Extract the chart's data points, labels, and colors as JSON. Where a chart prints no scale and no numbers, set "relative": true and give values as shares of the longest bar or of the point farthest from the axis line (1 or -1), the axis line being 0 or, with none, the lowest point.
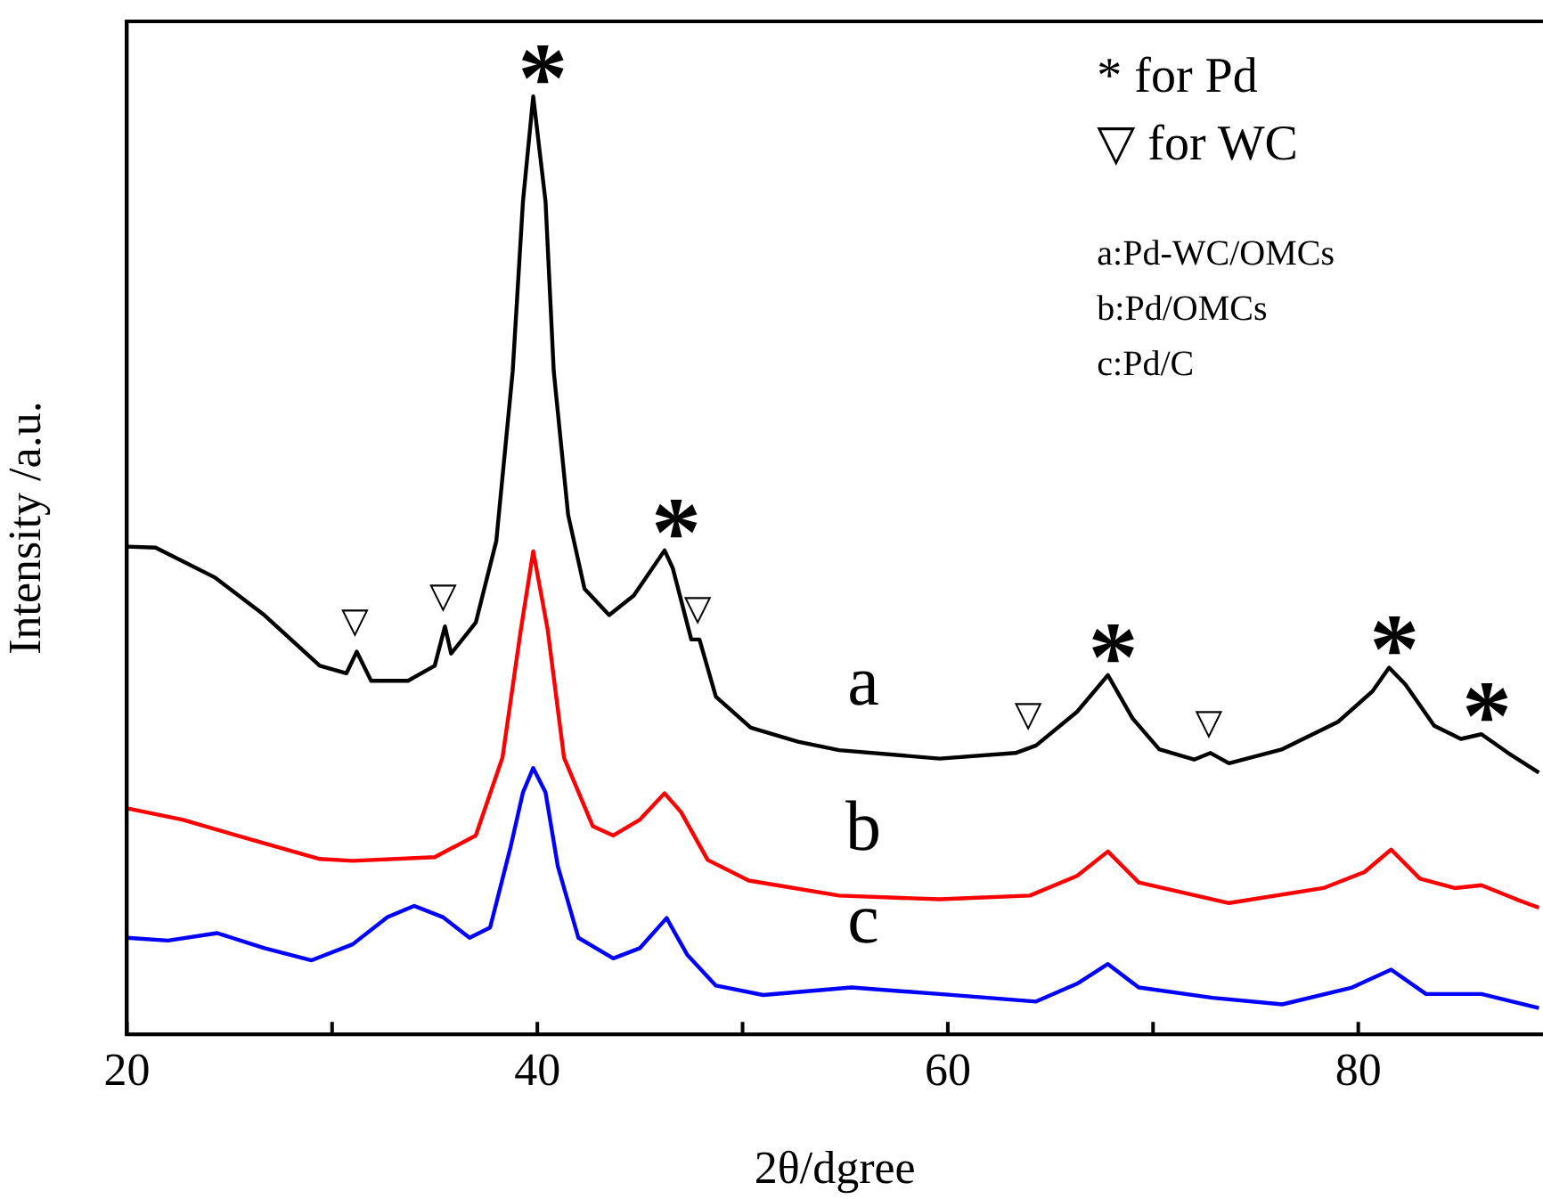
{
  "chart_data": {
    "type": "line",
    "relative": true,
    "xlabel": "2θ/dgree",
    "ylabel": "Intensity /a.u.",
    "xlim": [
      20,
      89
    ],
    "xticks": [
      20,
      {
        "value": 30,
        "label": null
      },
      40,
      {
        "value": 50,
        "label": null
      },
      60,
      {
        "value": 70,
        "label": null
      },
      80
    ],
    "grid": false,
    "legend": false,
    "marker": "none",
    "line_style": "solid",
    "series": [
      {
        "name": "a",
        "color": "#000000",
        "x": [
          20,
          21.4,
          24.3,
          26.7,
          29.4,
          30.7,
          31.2,
          31.9,
          33.7,
          35.0,
          35.5,
          35.8,
          37.0,
          38.0,
          38.8,
          39.3,
          39.8,
          40.4,
          40.8,
          41.5,
          42.3,
          43.5,
          44.7,
          46.2,
          46.6,
          47.5,
          47.9,
          48.7,
          50.4,
          52.7,
          54.7,
          59.6,
          63.3,
          64.3,
          66.3,
          67.8,
          69.0,
          70.3,
          72.0,
          72.8,
          73.7,
          76.3,
          79.0,
          80.7,
          81.5,
          82.3,
          83.7,
          85.0,
          86.0,
          87.3,
          88.8
        ],
        "values": [
          0.52,
          0.519,
          0.487,
          0.447,
          0.393,
          0.385,
          0.408,
          0.377,
          0.377,
          0.393,
          0.435,
          0.406,
          0.439,
          0.526,
          0.707,
          0.888,
          1.0,
          0.888,
          0.707,
          0.554,
          0.475,
          0.447,
          0.468,
          0.516,
          0.497,
          0.421,
          0.421,
          0.36,
          0.327,
          0.312,
          0.303,
          0.294,
          0.3,
          0.308,
          0.344,
          0.383,
          0.337,
          0.304,
          0.293,
          0.3,
          0.289,
          0.304,
          0.333,
          0.366,
          0.391,
          0.373,
          0.329,
          0.315,
          0.32,
          0.3,
          0.279
        ]
      },
      {
        "name": "b",
        "color": "#ff0000",
        "x": [
          20,
          22.7,
          26.0,
          29.4,
          31.0,
          35.0,
          37.0,
          38.3,
          39.2,
          39.8,
          40.5,
          41.3,
          42.7,
          43.7,
          45.0,
          46.2,
          47.0,
          48.3,
          50.3,
          54.7,
          59.6,
          64.0,
          66.3,
          67.8,
          69.3,
          73.7,
          78.3,
          80.3,
          81.6,
          83.0,
          84.7,
          86.0,
          87.7,
          88.8
        ],
        "values": [
          0.241,
          0.229,
          0.208,
          0.187,
          0.185,
          0.189,
          0.212,
          0.295,
          0.432,
          0.515,
          0.432,
          0.295,
          0.222,
          0.212,
          0.229,
          0.257,
          0.237,
          0.186,
          0.164,
          0.148,
          0.144,
          0.148,
          0.169,
          0.195,
          0.162,
          0.14,
          0.156,
          0.173,
          0.197,
          0.166,
          0.156,
          0.159,
          0.144,
          0.135
        ]
      },
      {
        "name": "c",
        "color": "#0000ff",
        "x": [
          20,
          22.0,
          24.4,
          26.7,
          29.0,
          31.0,
          32.7,
          34.0,
          35.4,
          36.7,
          37.7,
          38.7,
          39.3,
          39.8,
          40.4,
          41.0,
          42.0,
          43.7,
          45.0,
          46.3,
          47.3,
          48.7,
          51.0,
          55.3,
          59.6,
          64.3,
          66.3,
          67.8,
          69.3,
          72.9,
          76.3,
          79.7,
          81.6,
          83.3,
          86.0,
          88.8
        ],
        "values": [
          0.103,
          0.1,
          0.108,
          0.092,
          0.079,
          0.096,
          0.125,
          0.137,
          0.125,
          0.103,
          0.114,
          0.2,
          0.258,
          0.284,
          0.258,
          0.179,
          0.103,
          0.081,
          0.092,
          0.124,
          0.085,
          0.052,
          0.042,
          0.05,
          0.043,
          0.035,
          0.054,
          0.075,
          0.05,
          0.039,
          0.032,
          0.05,
          0.069,
          0.043,
          0.043,
          0.028
        ]
      }
    ],
    "annotations": [
      {
        "text": "*",
        "x": 40,
        "y": 1.0
      },
      {
        "text": "*",
        "x": 46.5,
        "y": 0.516
      },
      {
        "text": "*",
        "x": 67.8,
        "y": 0.383
      },
      {
        "text": "*",
        "x": 81.5,
        "y": 0.391
      },
      {
        "text": "*",
        "x": 86.0,
        "y": 0.32
      },
      {
        "text": "▽",
        "x": 31.2,
        "y": 0.408
      },
      {
        "text": "▽",
        "x": 35.5,
        "y": 0.435
      },
      {
        "text": "▽",
        "x": 47.9,
        "y": 0.421
      },
      {
        "text": "▽",
        "x": 64.0,
        "y": 0.308
      },
      {
        "text": "▽",
        "x": 72.8,
        "y": 0.3
      },
      "* for Pd",
      "▽ for WC",
      "a:Pd-WC/OMCs",
      "b:Pd/OMCs",
      "c:Pd/C"
    ]
  }
}
